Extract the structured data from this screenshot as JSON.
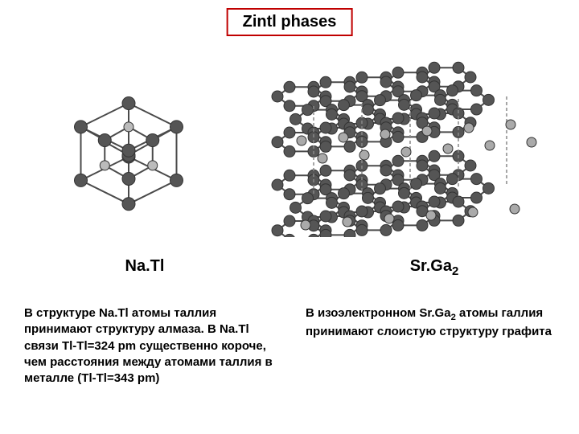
{
  "title": "Zintl phases",
  "title_border_color": "#c00000",
  "title_fontsize": 20,
  "labels": {
    "left": "Na.Tl",
    "right_prefix": "Sr.Ga",
    "right_sub": "2"
  },
  "descriptions": {
    "left": "В структуре Na.Tl атомы таллия принимают структуру алмаза. В Na.Tl связи Tl-Tl=324 pm существенно короче, чем расстояния между атомами таллия в металле (Tl-Tl=343 pm)",
    "right_line1_prefix": "В изоэлектронном Sr.Ga",
    "right_line1_sub": "2",
    "right_rest": " атомы галлия принимают слоистую структуру графита"
  },
  "diagram_left": {
    "type": "network",
    "atom_color_dark": "#555555",
    "atom_color_light": "#bbbbbb",
    "bond_color": "#4a4a4a",
    "bond_dash_color": "#888888",
    "background_color": "#ffffff",
    "atom_radius_dark": 8,
    "atom_radius_light": 6,
    "bond_width": 2
  },
  "diagram_right": {
    "type": "network",
    "layer_atom_color": "#555555",
    "inter_atom_color": "#aaaaaa",
    "bond_color": "#4a4a4a",
    "dash_color": "#888888",
    "background_color": "#ffffff",
    "atom_radius": 7,
    "inter_atom_radius": 6,
    "bond_width": 2
  },
  "body_fontsize": 15,
  "label_fontsize": 20
}
